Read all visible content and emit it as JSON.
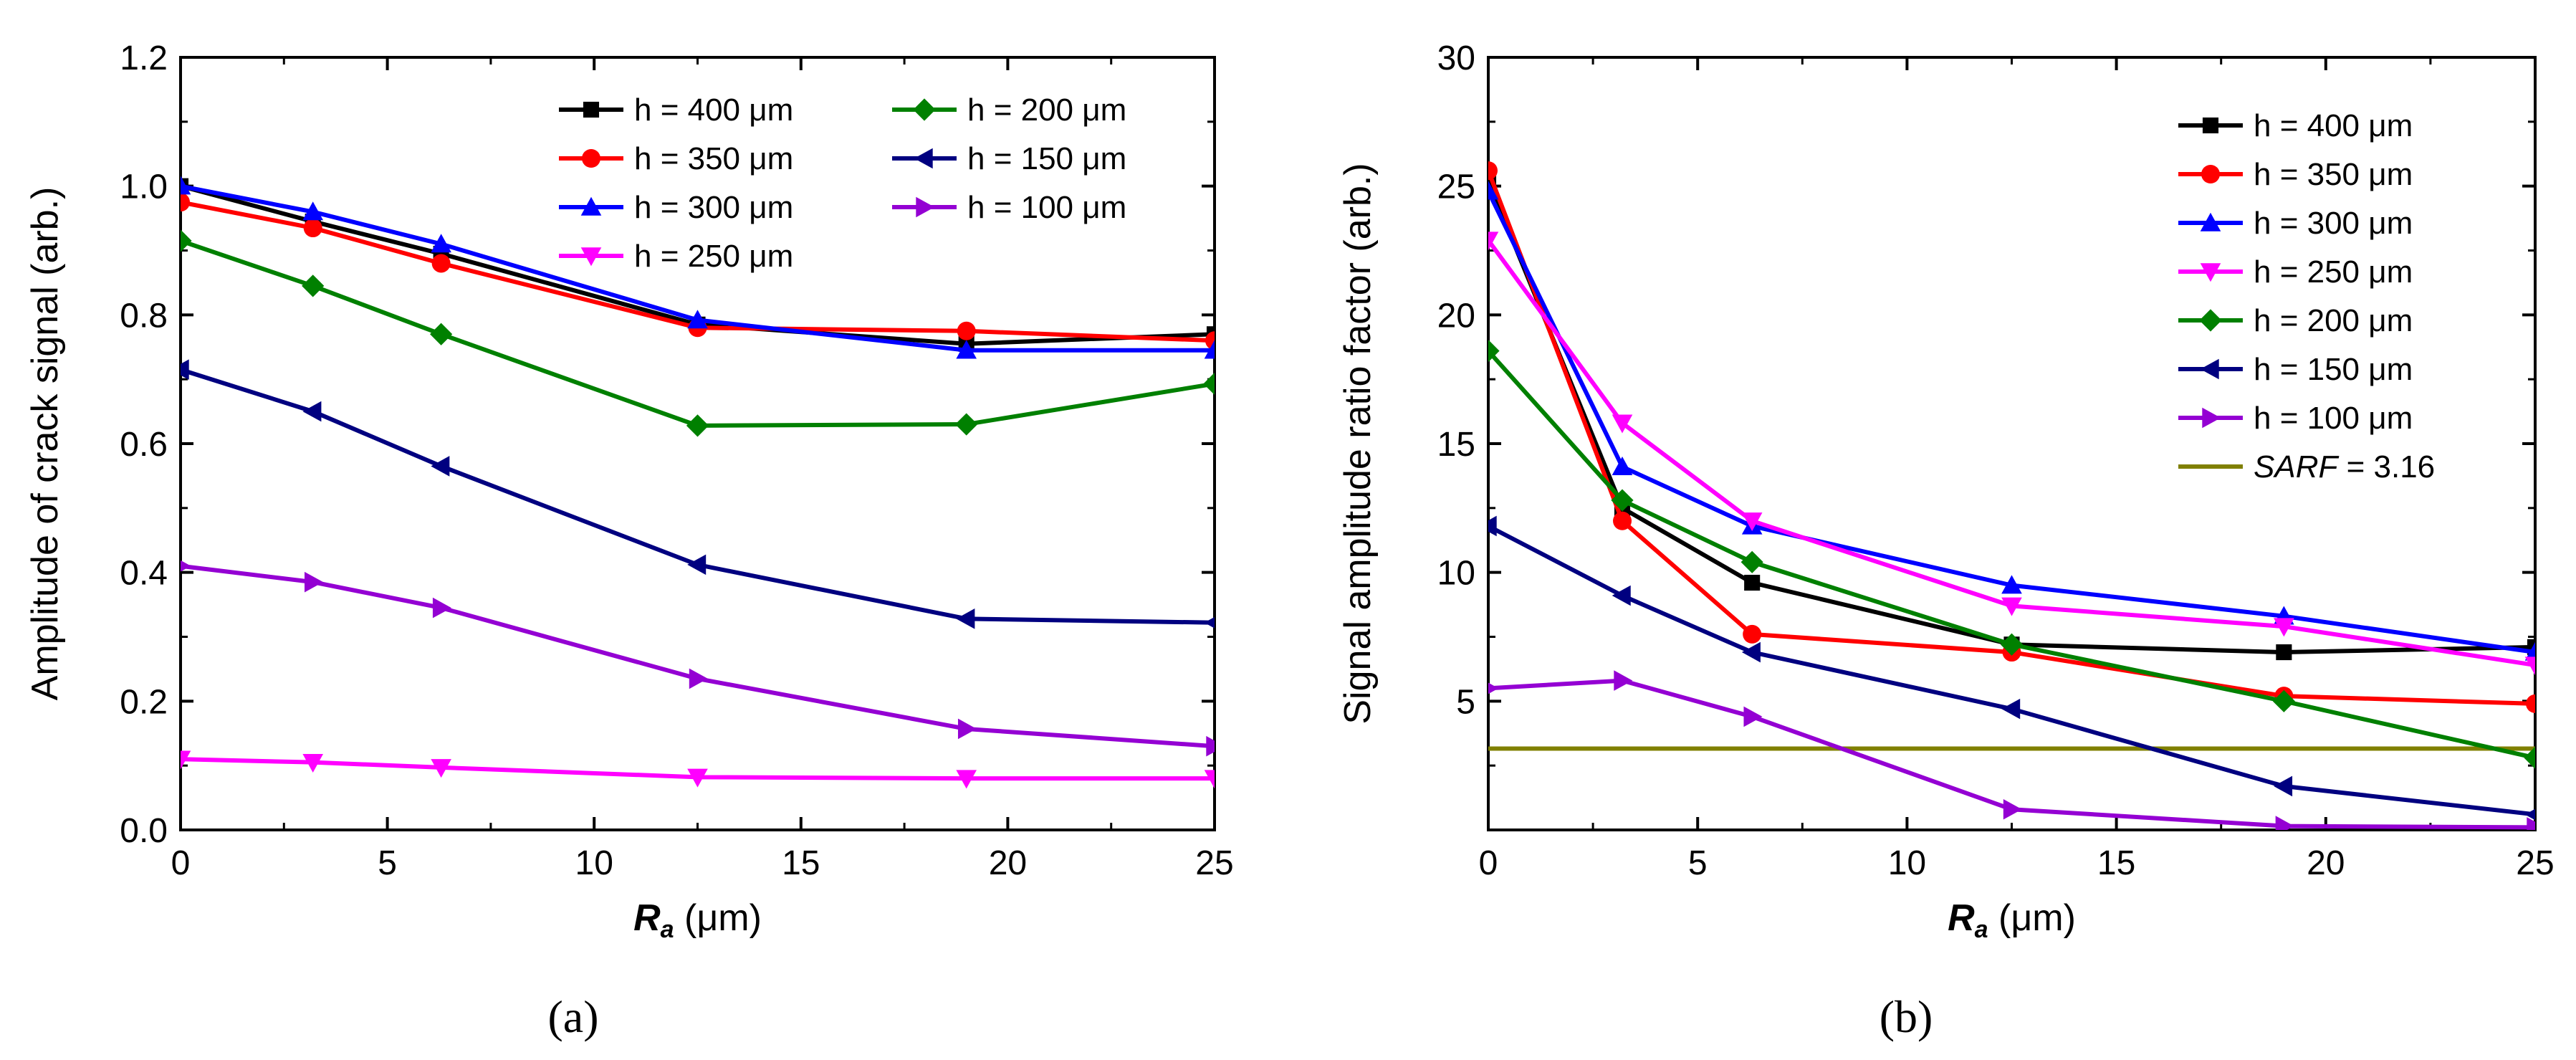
{
  "chart_data": [
    {
      "type": "line",
      "panel_label": "(a)",
      "xlabel_symbol": "R",
      "xlabel_sub": "a",
      "xlabel_unit": " (μm)",
      "ylabel": "Amplitude of crack signal (arb.)",
      "xlim": [
        0,
        25
      ],
      "ylim": [
        0,
        1.2
      ],
      "xticks": [
        "0",
        "5",
        "10",
        "15",
        "20",
        "25"
      ],
      "yticks": [
        "0.0",
        "0.2",
        "0.4",
        "0.6",
        "0.8",
        "1.0",
        "1.2"
      ],
      "grid": false,
      "legend_position": "top-right",
      "x": [
        0,
        3.2,
        6.3,
        12.5,
        19,
        25
      ],
      "series": [
        {
          "name": "h = 400 μm",
          "color": "#000000",
          "marker": "square",
          "values": [
            1.0,
            0.945,
            0.895,
            0.785,
            0.755,
            0.77
          ]
        },
        {
          "name": "h = 350 μm",
          "color": "#ff0000",
          "marker": "circle",
          "values": [
            0.975,
            0.935,
            0.88,
            0.78,
            0.775,
            0.76
          ]
        },
        {
          "name": "h = 300 μm",
          "color": "#0000ff",
          "marker": "triangle-up",
          "values": [
            1.0,
            0.96,
            0.91,
            0.792,
            0.745,
            0.745
          ]
        },
        {
          "name": "h = 250 μm",
          "color": "#ff00ff",
          "marker": "triangle-down",
          "values": [
            0.11,
            0.105,
            0.097,
            0.082,
            0.08,
            0.08
          ]
        },
        {
          "name": "h = 200 μm",
          "color": "#008000",
          "marker": "diamond",
          "values": [
            0.915,
            0.845,
            0.77,
            0.628,
            0.63,
            0.693
          ]
        },
        {
          "name": "h = 150 μm",
          "color": "#000080",
          "marker": "triangle-left",
          "values": [
            0.715,
            0.65,
            0.565,
            0.412,
            0.328,
            0.322
          ]
        },
        {
          "name": "h = 100 μm",
          "color": "#9400d3",
          "marker": "triangle-right",
          "values": [
            0.41,
            0.385,
            0.345,
            0.235,
            0.157,
            0.13
          ]
        }
      ]
    },
    {
      "type": "line",
      "panel_label": "(b)",
      "xlabel_symbol": "R",
      "xlabel_sub": "a",
      "xlabel_unit": " (μm)",
      "ylabel": "Signal amplitude ratio factor (arb.)",
      "xlim": [
        0,
        25
      ],
      "ylim": [
        0,
        30
      ],
      "xticks": [
        "0",
        "5",
        "10",
        "15",
        "20",
        "25"
      ],
      "yticks": [
        "5",
        "10",
        "15",
        "20",
        "25",
        "30"
      ],
      "grid": false,
      "legend_position": "top-right",
      "x": [
        0,
        3.2,
        6.3,
        12.5,
        19,
        25
      ],
      "series": [
        {
          "name": "h = 400 μm",
          "color": "#000000",
          "marker": "square",
          "values": [
            25.2,
            12.5,
            9.6,
            7.2,
            6.9,
            7.1
          ]
        },
        {
          "name": "h = 350 μm",
          "color": "#ff0000",
          "marker": "circle",
          "values": [
            25.6,
            12.0,
            7.6,
            6.9,
            5.2,
            4.9
          ]
        },
        {
          "name": "h = 300 μm",
          "color": "#0000ff",
          "marker": "triangle-up",
          "values": [
            24.8,
            14.1,
            11.8,
            9.5,
            8.3,
            6.9
          ]
        },
        {
          "name": "h = 250 μm",
          "color": "#ff00ff",
          "marker": "triangle-down",
          "values": [
            22.9,
            15.8,
            12.0,
            8.7,
            7.9,
            6.4
          ]
        },
        {
          "name": "h = 200 μm",
          "color": "#008000",
          "marker": "diamond",
          "values": [
            18.6,
            12.8,
            10.4,
            7.2,
            5.0,
            2.8
          ]
        },
        {
          "name": "h = 150 μm",
          "color": "#000080",
          "marker": "triangle-left",
          "values": [
            11.8,
            9.1,
            6.9,
            4.7,
            1.7,
            0.6
          ]
        },
        {
          "name": "h = 100 μm",
          "color": "#9400d3",
          "marker": "triangle-right",
          "values": [
            5.5,
            5.8,
            4.4,
            0.8,
            0.15,
            0.1
          ]
        }
      ],
      "reference_line": {
        "name_italic": "SARF",
        "name_rest": " = 3.16",
        "value": 3.16,
        "color": "#808000"
      }
    }
  ]
}
